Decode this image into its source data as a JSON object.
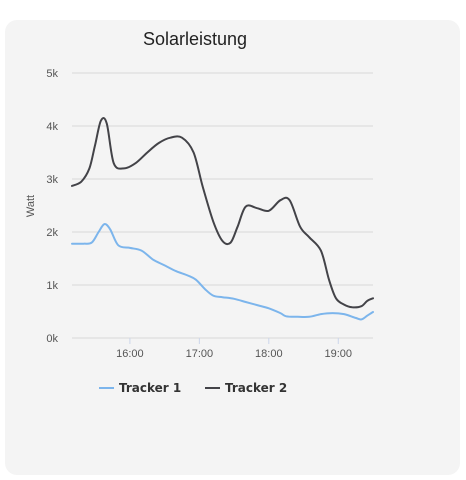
{
  "chart_data": {
    "type": "line",
    "title": "Solarleistung",
    "ylabel": "Watt",
    "xlabel": "",
    "ylim": [
      0,
      5000
    ],
    "yticks": [
      {
        "value": 0,
        "label": "0k"
      },
      {
        "value": 1000,
        "label": "1k"
      },
      {
        "value": 2000,
        "label": "2k"
      },
      {
        "value": 3000,
        "label": "3k"
      },
      {
        "value": 4000,
        "label": "4k"
      },
      {
        "value": 5000,
        "label": "5k"
      }
    ],
    "xlim": [
      "15:10",
      "19:30"
    ],
    "xticks": [
      "16:00",
      "17:00",
      "18:00",
      "19:00"
    ],
    "grid": true,
    "legend_position": "bottom",
    "series": [
      {
        "name": "Tracker 1",
        "color": "#7cb5ec",
        "points": [
          [
            "15:10",
            1780
          ],
          [
            "15:20",
            1780
          ],
          [
            "15:27",
            1800
          ],
          [
            "15:33",
            2000
          ],
          [
            "15:38",
            2150
          ],
          [
            "15:43",
            2050
          ],
          [
            "15:50",
            1750
          ],
          [
            "16:00",
            1700
          ],
          [
            "16:10",
            1650
          ],
          [
            "16:20",
            1480
          ],
          [
            "16:30",
            1370
          ],
          [
            "16:40",
            1260
          ],
          [
            "16:50",
            1180
          ],
          [
            "16:57",
            1100
          ],
          [
            "17:05",
            920
          ],
          [
            "17:12",
            800
          ],
          [
            "17:20",
            770
          ],
          [
            "17:30",
            740
          ],
          [
            "17:40",
            680
          ],
          [
            "17:50",
            620
          ],
          [
            "18:00",
            560
          ],
          [
            "18:10",
            470
          ],
          [
            "18:15",
            410
          ],
          [
            "18:25",
            400
          ],
          [
            "18:35",
            400
          ],
          [
            "18:45",
            450
          ],
          [
            "18:55",
            470
          ],
          [
            "19:05",
            450
          ],
          [
            "19:15",
            380
          ],
          [
            "19:20",
            350
          ],
          [
            "19:25",
            420
          ],
          [
            "19:30",
            490
          ]
        ]
      },
      {
        "name": "Tracker 2",
        "color": "#434348",
        "points": [
          [
            "15:10",
            2870
          ],
          [
            "15:18",
            2950
          ],
          [
            "15:25",
            3200
          ],
          [
            "15:30",
            3650
          ],
          [
            "15:35",
            4100
          ],
          [
            "15:40",
            4050
          ],
          [
            "15:46",
            3300
          ],
          [
            "15:55",
            3200
          ],
          [
            "16:05",
            3300
          ],
          [
            "16:15",
            3500
          ],
          [
            "16:25",
            3680
          ],
          [
            "16:35",
            3780
          ],
          [
            "16:45",
            3780
          ],
          [
            "16:55",
            3500
          ],
          [
            "17:03",
            2850
          ],
          [
            "17:12",
            2200
          ],
          [
            "17:20",
            1830
          ],
          [
            "17:27",
            1800
          ],
          [
            "17:33",
            2100
          ],
          [
            "17:40",
            2480
          ],
          [
            "17:50",
            2450
          ],
          [
            "18:00",
            2400
          ],
          [
            "18:10",
            2600
          ],
          [
            "18:18",
            2600
          ],
          [
            "18:27",
            2100
          ],
          [
            "18:35",
            1900
          ],
          [
            "18:45",
            1650
          ],
          [
            "18:52",
            1100
          ],
          [
            "18:58",
            750
          ],
          [
            "19:05",
            630
          ],
          [
            "19:12",
            580
          ],
          [
            "19:20",
            600
          ],
          [
            "19:25",
            700
          ],
          [
            "19:30",
            750
          ]
        ]
      }
    ]
  }
}
